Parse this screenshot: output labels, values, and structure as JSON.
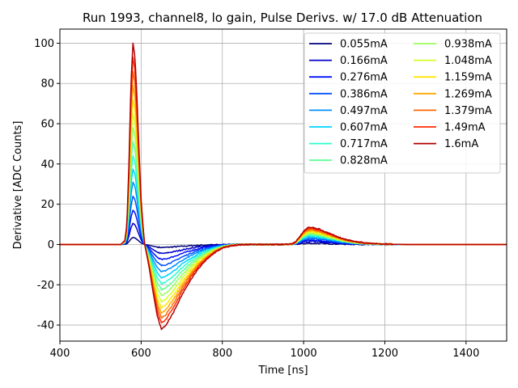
{
  "chart_data": {
    "type": "line",
    "title": "Run 1993, channel8, lo gain, Pulse Derivs. w/ 17.0 dB Attenuation",
    "xlabel": "Time [ns]",
    "ylabel": "Derivative [ADC Counts]",
    "xlim": [
      400,
      1500
    ],
    "ylim": [
      -48,
      107
    ],
    "xticks": [
      400,
      600,
      800,
      1000,
      1200,
      1400
    ],
    "yticks": [
      -40,
      -20,
      0,
      20,
      40,
      60,
      80,
      100
    ],
    "grid": true,
    "legend_placement": "upper-right",
    "legend_columns": 2,
    "pulse_shape": {
      "x": [
        400,
        550,
        560,
        565,
        570,
        575,
        580,
        585,
        590,
        595,
        600,
        605,
        610,
        615,
        620,
        630,
        640,
        650,
        660,
        680,
        700,
        720,
        740,
        760,
        780,
        800,
        820,
        850,
        900,
        950,
        970,
        980,
        990,
        1000,
        1010,
        1020,
        1040,
        1060,
        1080,
        1100,
        1120,
        1150,
        1180,
        1200,
        1250,
        1300,
        1400,
        1500
      ],
      "unit_values": [
        0,
        0,
        0.02,
        0.1,
        0.4,
        0.8,
        1.0,
        0.93,
        0.72,
        0.45,
        0.22,
        0.08,
        -0.03,
        -0.15,
        -0.28,
        -0.58,
        -0.85,
        -1.0,
        -0.96,
        -0.8,
        -0.6,
        -0.43,
        -0.29,
        -0.18,
        -0.1,
        -0.045,
        -0.015,
        0,
        0,
        0,
        0.005,
        0.03,
        0.09,
        0.16,
        0.2,
        0.205,
        0.18,
        0.14,
        0.1,
        0.065,
        0.04,
        0.02,
        0.01,
        0.005,
        0,
        0,
        0,
        0
      ]
    },
    "series": [
      {
        "name": "0.055mA",
        "color": "#00007f",
        "peak": 3.5,
        "trough": -1.5,
        "bump": 0.6
      },
      {
        "name": "0.166mA",
        "color": "#0000c8",
        "peak": 10.5,
        "trough": -4.5,
        "bump": 1.5
      },
      {
        "name": "0.276mA",
        "color": "#0010ff",
        "peak": 17,
        "trough": -7.5,
        "bump": 2.2
      },
      {
        "name": "0.386mA",
        "color": "#0050ff",
        "peak": 24,
        "trough": -10.5,
        "bump": 2.8
      },
      {
        "name": "0.497mA",
        "color": "#0090ff",
        "peak": 31,
        "trough": -13.5,
        "bump": 3.4
      },
      {
        "name": "0.607mA",
        "color": "#00d4ff",
        "peak": 37.5,
        "trough": -16.5,
        "bump": 4
      },
      {
        "name": "0.717mA",
        "color": "#29ffce",
        "peak": 44,
        "trough": -19.5,
        "bump": 4.5
      },
      {
        "name": "0.828mA",
        "color": "#60ff97",
        "peak": 51,
        "trough": -22.5,
        "bump": 5
      },
      {
        "name": "0.938mA",
        "color": "#9aff5d",
        "peak": 58,
        "trough": -25.5,
        "bump": 5.5
      },
      {
        "name": "1.048mA",
        "color": "#d1ff26",
        "peak": 65,
        "trough": -28.5,
        "bump": 6
      },
      {
        "name": "1.159mA",
        "color": "#ffe500",
        "peak": 72,
        "trough": -31.5,
        "bump": 6.5
      },
      {
        "name": "1.269mA",
        "color": "#ffa700",
        "peak": 79,
        "trough": -34,
        "bump": 7
      },
      {
        "name": "1.379mA",
        "color": "#ff6800",
        "peak": 86,
        "trough": -36.5,
        "bump": 7.5
      },
      {
        "name": "1.49mA",
        "color": "#ff2900",
        "peak": 93,
        "trough": -39,
        "bump": 8
      },
      {
        "name": "1.6mA",
        "color": "#b20000",
        "peak": 100,
        "trough": -42,
        "bump": 8.5
      }
    ]
  }
}
